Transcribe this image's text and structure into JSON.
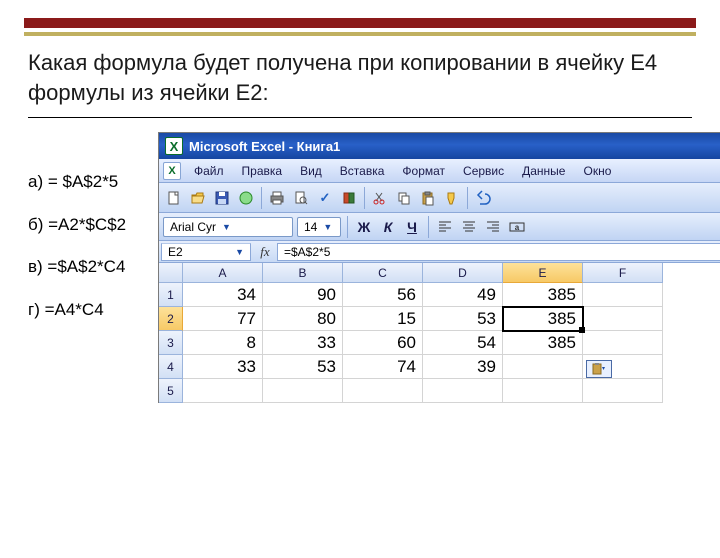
{
  "colors": {
    "stripe1": "#8b1a1a",
    "stripe2": "#c0b060",
    "titlebar_grad": [
      "#1a4aa5",
      "#2860c8",
      "#1545a0"
    ],
    "toolbar_grad": [
      "#e6eefc",
      "#c0d4f3"
    ],
    "header_grad": [
      "#eef3fc",
      "#d2e0f5"
    ],
    "header_sel_grad": [
      "#fde29a",
      "#f7c966"
    ],
    "grid_border": "#d4d4d4"
  },
  "question": "Какая формула будет получена при копировании в ячейку E4 формулы из ячейки E2:",
  "answers": {
    "a": "а) = $A$2*5",
    "b": "б) =A2*$C$2",
    "c": "в) =$A$2*C4",
    "d": "г) =A4*C4"
  },
  "excel": {
    "app_title": "Microsoft Excel - Книга1",
    "menu": [
      "Файл",
      "Правка",
      "Вид",
      "Вставка",
      "Формат",
      "Сервис",
      "Данные",
      "Окно"
    ],
    "font_name": "Arial Cyr",
    "font_size": "14",
    "bold": "Ж",
    "italic": "К",
    "underline": "Ч",
    "namebox": "E2",
    "fx": "fx",
    "formula": "=$A$2*5",
    "columns": [
      "A",
      "B",
      "C",
      "D",
      "E",
      "F"
    ],
    "selected_col": "E",
    "selected_row": "2",
    "rows": [
      {
        "h": "1",
        "cells": [
          "34",
          "90",
          "56",
          "49",
          "385",
          ""
        ]
      },
      {
        "h": "2",
        "cells": [
          "77",
          "80",
          "15",
          "53",
          "385",
          ""
        ]
      },
      {
        "h": "3",
        "cells": [
          "8",
          "33",
          "60",
          "54",
          "385",
          ""
        ]
      },
      {
        "h": "4",
        "cells": [
          "33",
          "53",
          "74",
          "39",
          "",
          ""
        ]
      },
      {
        "h": "5",
        "cells": [
          "",
          "",
          "",
          "",
          "",
          ""
        ]
      }
    ],
    "selected_cell": {
      "row": 1,
      "col": 4
    }
  }
}
